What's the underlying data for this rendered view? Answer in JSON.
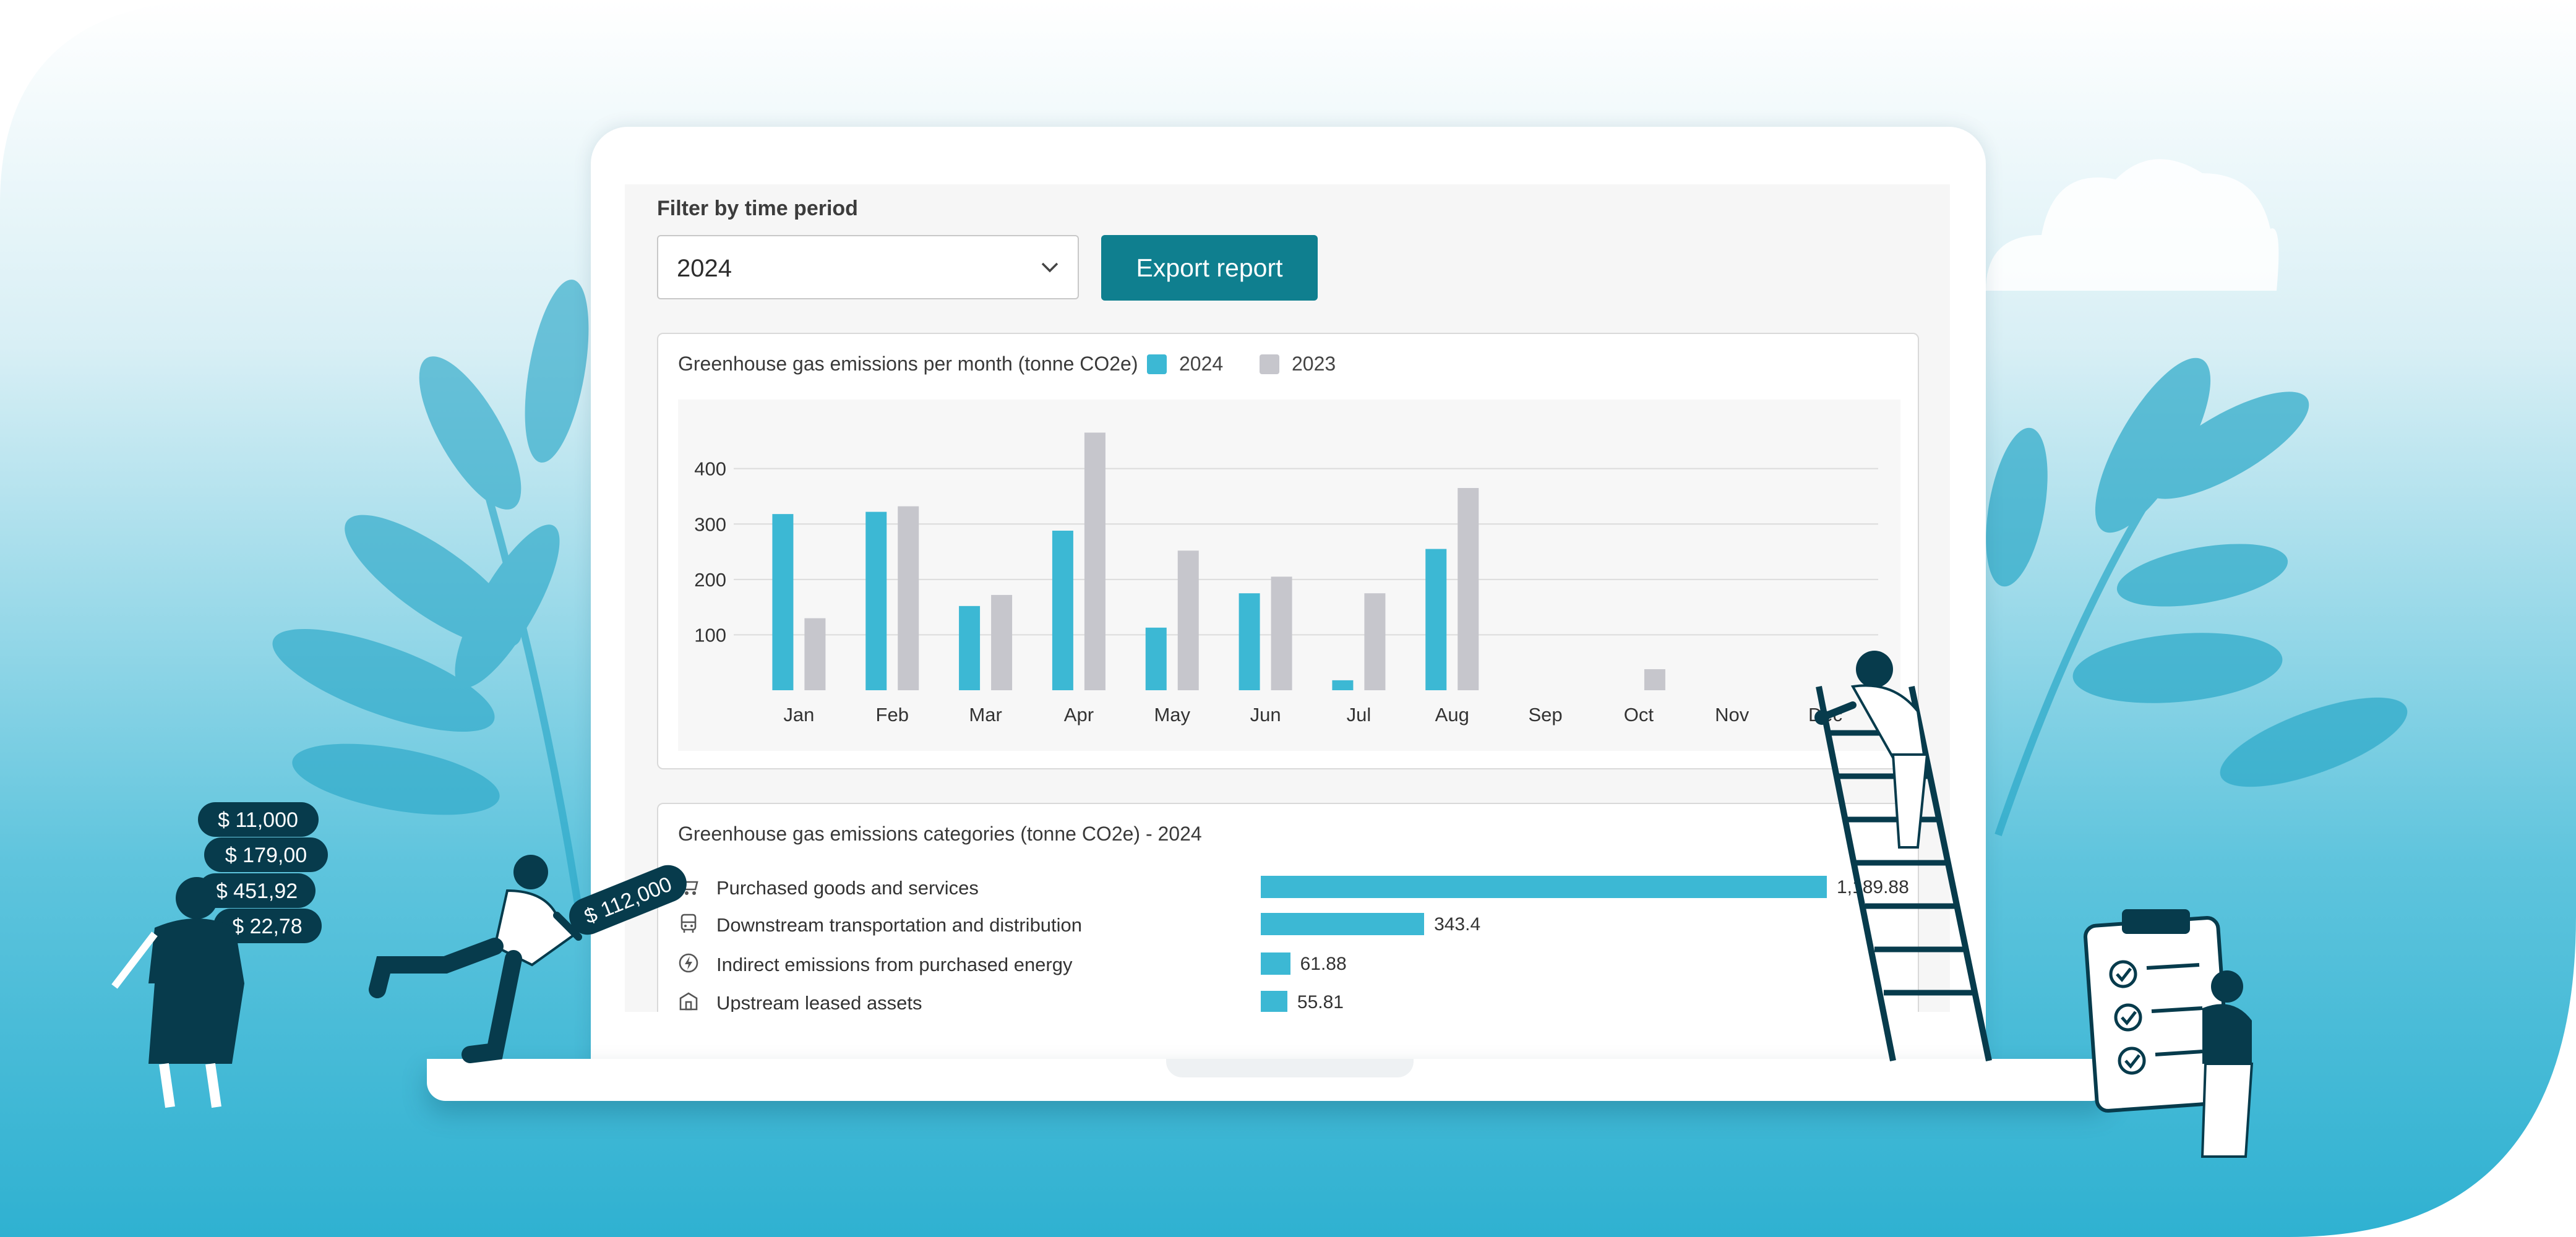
{
  "filter": {
    "label": "Filter by time period",
    "selected": "2024",
    "export_label": "Export report"
  },
  "emissions_chart": {
    "title": "Greenhouse gas emissions per month (tonne CO2e)",
    "legend": [
      {
        "label": "2024",
        "color": "#3cb8d4"
      },
      {
        "label": "2023",
        "color": "#c6c6cc"
      }
    ]
  },
  "chart_data": {
    "type": "bar",
    "categories": [
      "Jan",
      "Feb",
      "Mar",
      "Apr",
      "May",
      "Jun",
      "Jul",
      "Aug",
      "Sep",
      "Oct",
      "Nov",
      "Dec"
    ],
    "series": [
      {
        "name": "2024",
        "values": [
          318,
          322,
          152,
          288,
          113,
          175,
          18,
          255,
          null,
          null,
          null,
          null
        ]
      },
      {
        "name": "2023",
        "values": [
          130,
          332,
          172,
          465,
          252,
          205,
          175,
          365,
          null,
          38,
          null,
          null
        ]
      }
    ],
    "y_ticks": [
      100,
      200,
      300,
      400
    ],
    "ylim": [
      0,
      480
    ],
    "grid": true,
    "legend_position": "top"
  },
  "categories_card": {
    "title": "Greenhouse gas emissions categories (tonne CO2e) - 2024",
    "items": [
      {
        "label": "Purchased goods and services",
        "value": 1189.88,
        "value_text": "1,189.88",
        "icon": "cart-icon"
      },
      {
        "label": "Downstream transportation and distribution",
        "value": 343.4,
        "value_text": "343.4",
        "icon": "bus-icon"
      },
      {
        "label": "Indirect emissions from purchased energy",
        "value": 61.88,
        "value_text": "61.88",
        "icon": "energy-icon"
      },
      {
        "label": "Upstream leased assets",
        "value": 55.81,
        "value_text": "55.81",
        "icon": "building-icon"
      }
    ]
  },
  "money_tags": [
    "$ 11,000",
    "$ 179,00",
    "$ 451,92",
    "$ 22,78"
  ],
  "runner_tag": "$ 112,000",
  "colors": {
    "accent": "#0f7f8f",
    "bar_2024": "#3cb8d4",
    "bar_2023": "#c6c6cc",
    "navy": "#073b4c",
    "sky": "#4cc0dc"
  }
}
